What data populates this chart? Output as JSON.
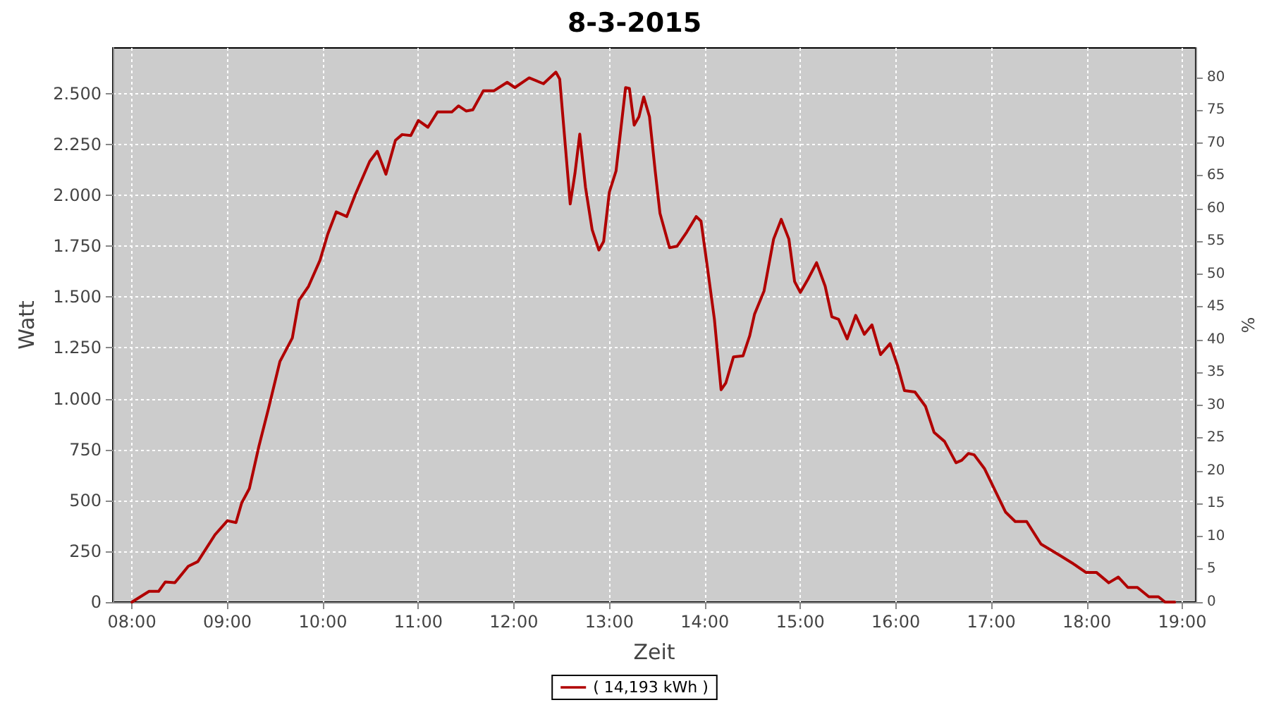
{
  "chart_data": {
    "type": "line",
    "title": "8-3-2015",
    "xlabel": "Zeit",
    "ylabel": "Watt",
    "y2label": "%",
    "x": [
      8.0,
      8.18,
      8.28,
      8.35,
      8.45,
      8.59,
      8.69,
      8.87,
      9.0,
      9.09,
      9.15,
      9.23,
      9.33,
      9.43,
      9.55,
      9.68,
      9.75,
      9.85,
      9.97,
      10.05,
      10.14,
      10.25,
      10.34,
      10.49,
      10.57,
      10.66,
      10.76,
      10.83,
      10.92,
      11.0,
      11.1,
      11.2,
      11.35,
      11.42,
      11.5,
      11.57,
      11.68,
      11.79,
      11.93,
      12.01,
      12.16,
      12.31,
      12.44,
      12.48,
      12.53,
      12.59,
      12.64,
      12.69,
      12.75,
      12.82,
      12.89,
      12.94,
      13.0,
      13.07,
      13.17,
      13.21,
      13.26,
      13.31,
      13.36,
      13.42,
      13.48,
      13.53,
      13.63,
      13.71,
      13.81,
      13.91,
      13.96,
      14.02,
      14.1,
      14.17,
      14.22,
      14.3,
      14.4,
      14.47,
      14.52,
      14.62,
      14.72,
      14.8,
      14.88,
      14.94,
      15.0,
      15.08,
      15.17,
      15.26,
      15.33,
      15.4,
      15.49,
      15.58,
      15.67,
      15.75,
      15.84,
      15.94,
      16.02,
      16.09,
      16.2,
      16.31,
      16.4,
      16.51,
      16.63,
      16.69,
      16.76,
      16.82,
      16.93,
      17.03,
      17.15,
      17.25,
      17.37,
      17.52,
      17.72,
      17.86,
      17.99,
      18.1,
      18.23,
      18.33,
      18.43,
      18.53,
      18.65,
      18.75,
      18.82,
      18.92
    ],
    "series": [
      {
        "name": "( 14,193 kWh )",
        "color": "#b00000",
        "values": [
          0,
          53,
          53,
          99,
          95,
          176,
          199,
          331,
          400,
          391,
          488,
          558,
          766,
          951,
          1183,
          1299,
          1484,
          1553,
          1681,
          1808,
          1919,
          1896,
          2005,
          2167,
          2217,
          2104,
          2271,
          2299,
          2294,
          2368,
          2335,
          2410,
          2410,
          2440,
          2415,
          2421,
          2514,
          2514,
          2556,
          2530,
          2578,
          2549,
          2606,
          2572,
          2294,
          1958,
          2109,
          2301,
          2040,
          1831,
          1731,
          1773,
          2016,
          2120,
          2530,
          2526,
          2345,
          2387,
          2484,
          2387,
          2120,
          1912,
          1743,
          1750,
          1819,
          1896,
          1873,
          1669,
          1391,
          1044,
          1078,
          1206,
          1211,
          1310,
          1415,
          1530,
          1785,
          1882,
          1785,
          1576,
          1523,
          1588,
          1669,
          1553,
          1403,
          1391,
          1294,
          1410,
          1317,
          1363,
          1217,
          1271,
          1160,
          1040,
          1033,
          963,
          835,
          790,
          685,
          697,
          731,
          724,
          655,
          558,
          442,
          396,
          396,
          285,
          229,
          188,
          146,
          146,
          95,
          123,
          72,
          72,
          26,
          26,
          0,
          0
        ]
      }
    ],
    "xlim": [
      7.8,
      19.14
    ],
    "xticks": [
      {
        "value": 8,
        "label": "08:00"
      },
      {
        "value": 9,
        "label": "09:00"
      },
      {
        "value": 10,
        "label": "10:00"
      },
      {
        "value": 11,
        "label": "11:00"
      },
      {
        "value": 12,
        "label": "12:00"
      },
      {
        "value": 13,
        "label": "13:00"
      },
      {
        "value": 14,
        "label": "14:00"
      },
      {
        "value": 15,
        "label": "15:00"
      },
      {
        "value": 16,
        "label": "16:00"
      },
      {
        "value": 17,
        "label": "17:00"
      },
      {
        "value": 18,
        "label": "18:00"
      },
      {
        "value": 19,
        "label": "19:00"
      }
    ],
    "ylim": [
      0,
      2725
    ],
    "yticks": [
      0,
      {
        "value": 250,
        "label": "250"
      },
      {
        "value": 500,
        "label": "500"
      },
      {
        "value": 750,
        "label": "750"
      },
      {
        "value": 1000,
        "label": "1.000"
      },
      {
        "value": 1250,
        "label": "1.250"
      },
      {
        "value": 1500,
        "label": "1.500"
      },
      {
        "value": 1750,
        "label": "1.750"
      },
      {
        "value": 2000,
        "label": "2.000"
      },
      {
        "value": 2250,
        "label": "2.250"
      },
      {
        "value": 2500,
        "label": "2.500"
      }
    ],
    "y2lim": [
      0,
      84.5
    ],
    "y2ticks": [
      0,
      5,
      10,
      15,
      20,
      25,
      30,
      35,
      40,
      45,
      50,
      55,
      60,
      65,
      70,
      75,
      80
    ],
    "grid": true,
    "legend": "bottom",
    "marker": "none",
    "line_style": "solid"
  }
}
